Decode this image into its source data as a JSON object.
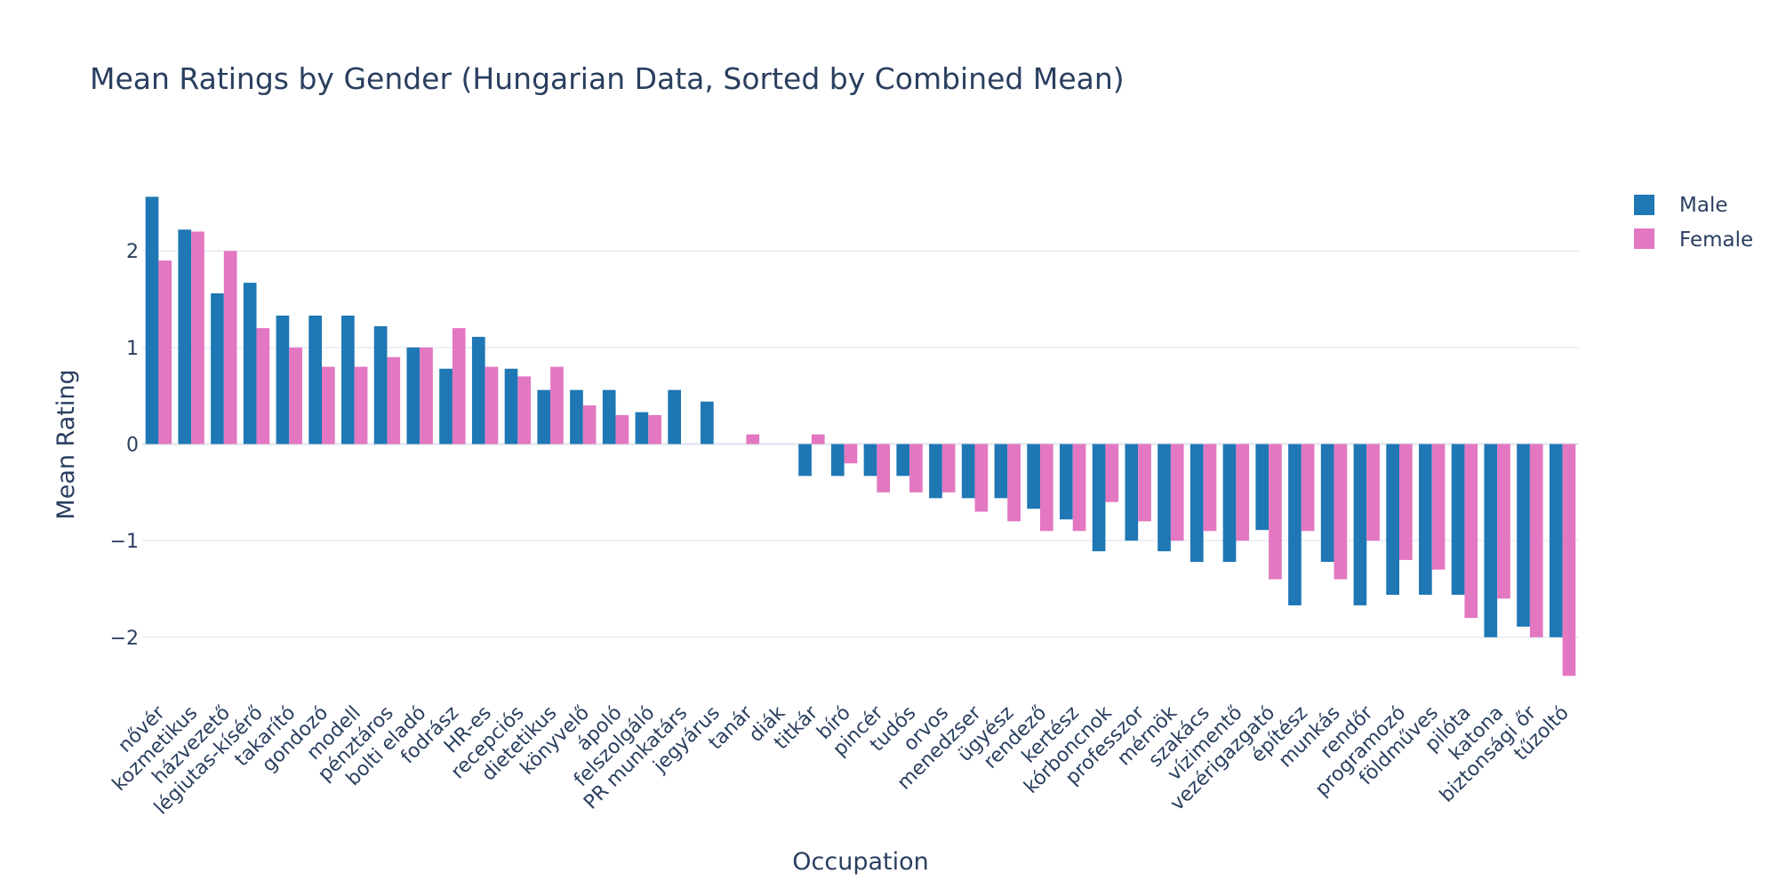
{
  "colors": {
    "male": "#1f77b4",
    "female": "#e377c2",
    "text": "#2a3f5f",
    "grid": "#e6ebf3"
  },
  "chart_data": {
    "type": "bar",
    "title": "Mean Ratings by Gender (Hungarian Data, Sorted by Combined Mean)",
    "xlabel": "Occupation",
    "ylabel": "Mean Rating",
    "ylim": [
      -2.6,
      2.6
    ],
    "yticks": [
      -2,
      -1,
      0,
      1,
      2
    ],
    "ytick_labels": [
      "−2",
      "−1",
      "0",
      "1",
      "2"
    ],
    "grid": true,
    "legend_position": "top-right",
    "categories": [
      "nővér",
      "kozmetikus",
      "házvezető",
      "légiutas-kísérő",
      "takarító",
      "gondozó",
      "modell",
      "pénztáros",
      "bolti eladó",
      "fodrász",
      "HR-es",
      "recepciós",
      "dietetikus",
      "könyvelő",
      "ápoló",
      "felszolgáló",
      "PR munkatárs",
      "jegyárus",
      "tanár",
      "diák",
      "titkár",
      "bíró",
      "pincér",
      "tudós",
      "orvos",
      "menedzser",
      "ügyész",
      "rendező",
      "kertész",
      "kórboncnok",
      "professzor",
      "mérnök",
      "szakács",
      "vízimentő",
      "vezérigazgató",
      "építész",
      "munkás",
      "rendőr",
      "programozó",
      "földműves",
      "pilóta",
      "katona",
      "biztonsági őr",
      "tűzoltó"
    ],
    "series": [
      {
        "name": "Male",
        "values": [
          2.56,
          2.22,
          1.56,
          1.67,
          1.33,
          1.33,
          1.33,
          1.22,
          1.0,
          0.78,
          1.11,
          0.78,
          0.56,
          0.56,
          0.56,
          0.33,
          0.56,
          0.44,
          0.0,
          0.0,
          -0.33,
          -0.33,
          -0.33,
          -0.33,
          -0.56,
          -0.56,
          -0.56,
          -0.67,
          -0.78,
          -1.11,
          -1.0,
          -1.11,
          -1.22,
          -1.22,
          -0.89,
          -1.67,
          -1.22,
          -1.67,
          -1.56,
          -1.56,
          -1.56,
          -2.0,
          -1.89,
          -2.0
        ]
      },
      {
        "name": "Female",
        "values": [
          1.9,
          2.2,
          2.0,
          1.2,
          1.0,
          0.8,
          0.8,
          0.9,
          1.0,
          1.2,
          0.8,
          0.7,
          0.8,
          0.4,
          0.3,
          0.3,
          0.0,
          0.0,
          0.1,
          0.0,
          0.1,
          -0.2,
          -0.5,
          -0.5,
          -0.5,
          -0.7,
          -0.8,
          -0.9,
          -0.9,
          -0.6,
          -0.8,
          -1.0,
          -0.9,
          -1.0,
          -1.4,
          -0.9,
          -1.4,
          -1.0,
          -1.2,
          -1.3,
          -1.8,
          -1.6,
          -2.0,
          -2.4
        ]
      }
    ]
  }
}
